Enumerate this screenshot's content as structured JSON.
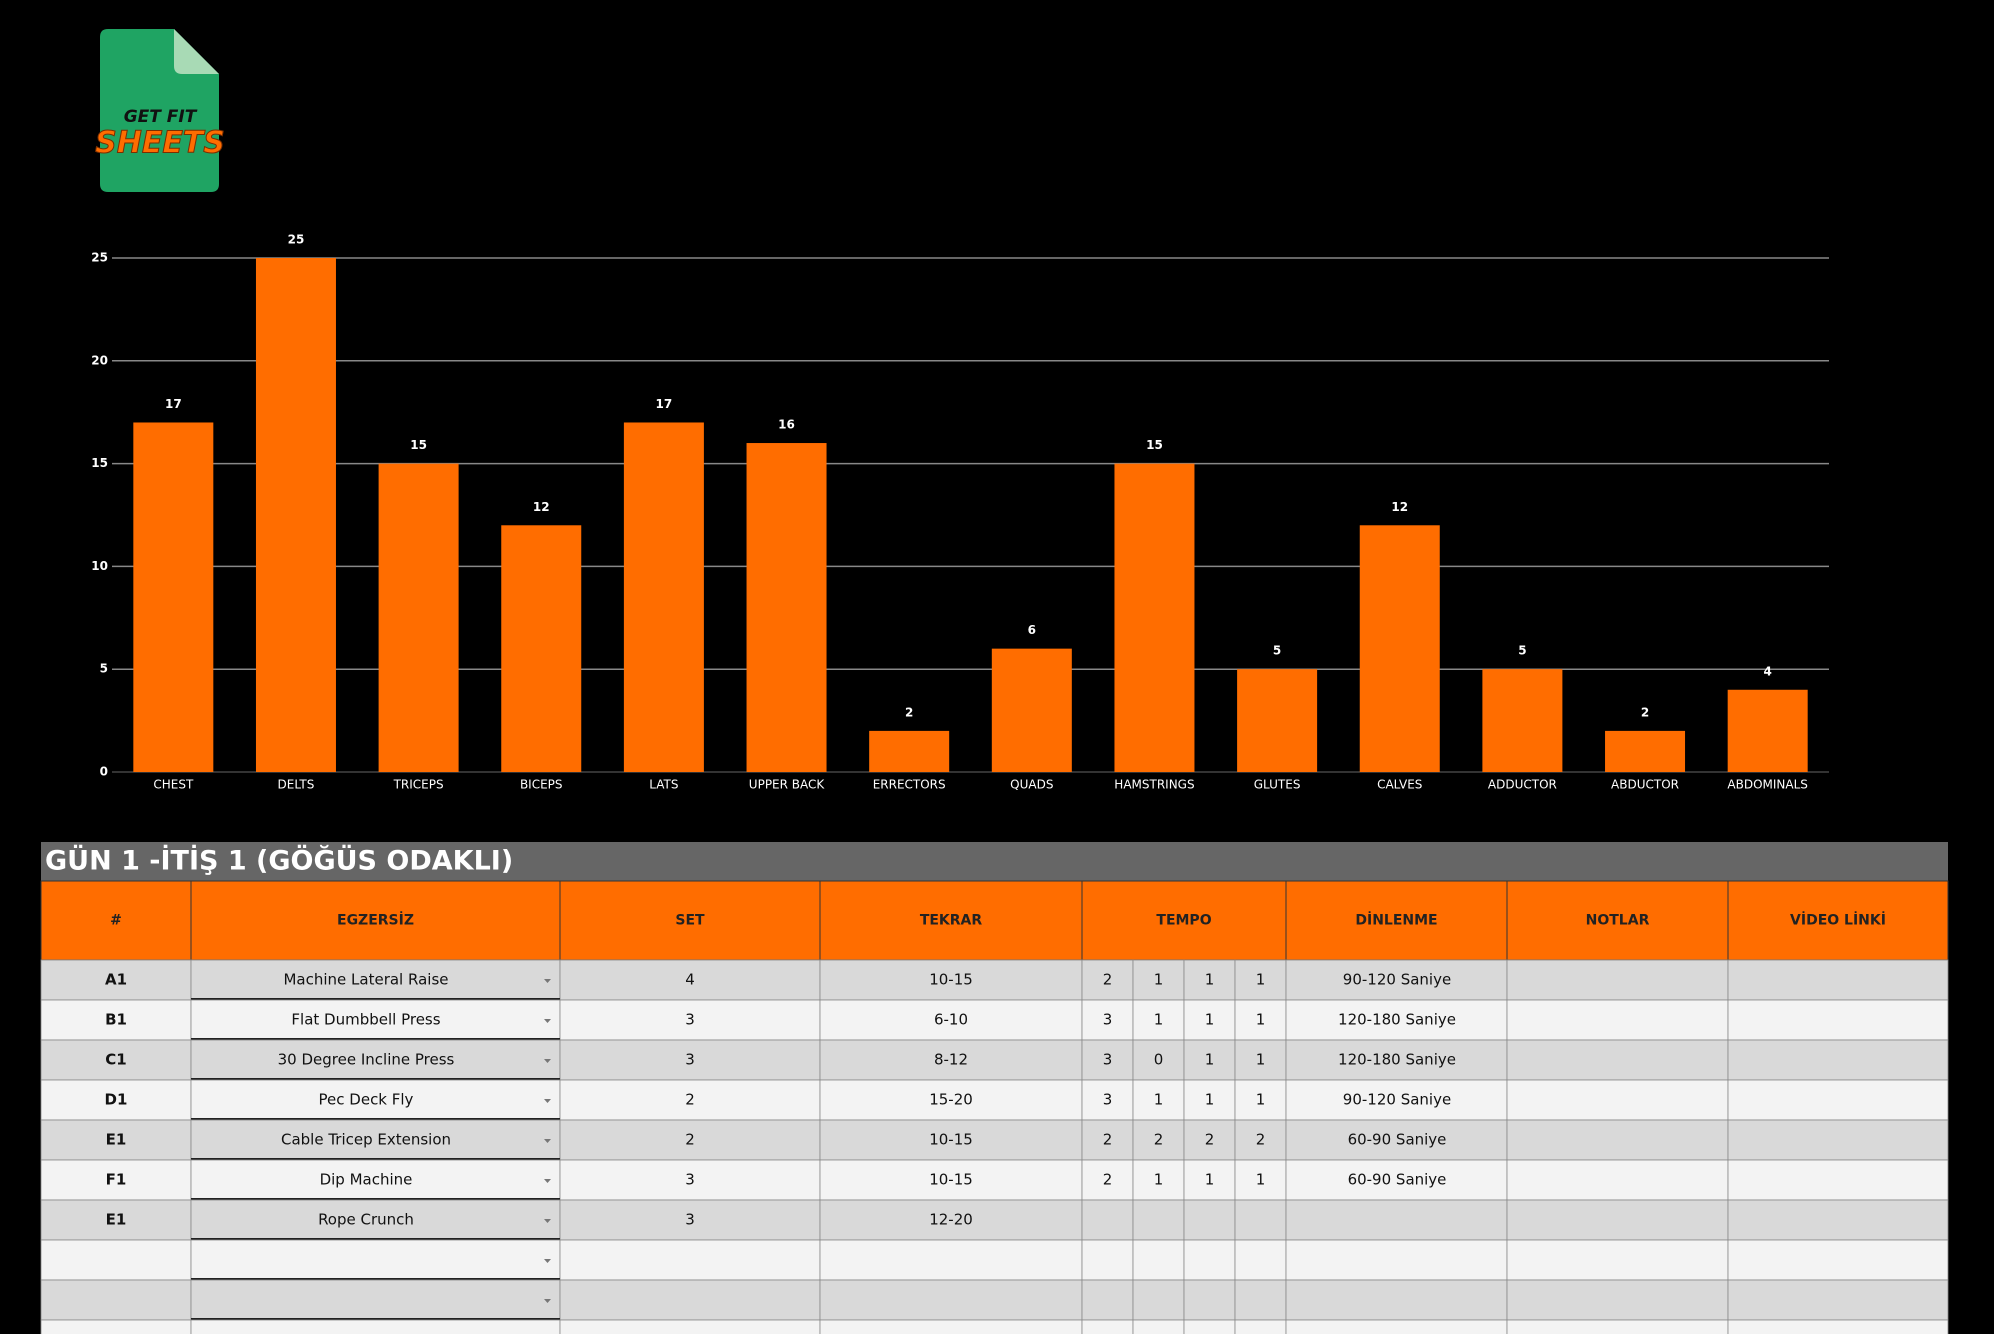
{
  "logo": {
    "line1": "GET FIT",
    "line2": "SHEETS"
  },
  "chart_data": {
    "type": "bar",
    "categories": [
      "CHEST",
      "DELTS",
      "TRICEPS",
      "BICEPS",
      "LATS",
      "UPPER BACK",
      "ERRECTORS",
      "QUADS",
      "HAMSTRINGS",
      "GLUTES",
      "CALVES",
      "ADDUCTOR",
      "ABDUCTOR",
      "ABDOMINALS"
    ],
    "values": [
      17,
      25,
      15,
      12,
      17,
      16,
      2,
      6,
      15,
      5,
      12,
      5,
      2,
      4
    ],
    "color": "#ff6d00",
    "ylim": [
      0,
      25
    ],
    "yticks": [
      0,
      5,
      10,
      15,
      20,
      25
    ],
    "grid": true
  },
  "table": {
    "title": "GÜN 1 -İTİŞ 1 (GÖĞÜS ODAKLI)",
    "headers": [
      "#",
      "EGZERSİZ",
      "SET",
      "TEKRAR",
      "TEMPO",
      "DİNLENME",
      "NOTLAR",
      "VİDEO LİNKİ"
    ],
    "rows": [
      {
        "id": "A1",
        "exercise": "Machine Lateral Raise",
        "set": 4,
        "reps": "10-15",
        "tempo": [
          2,
          1,
          1,
          1
        ],
        "rest": "90-120 Saniye"
      },
      {
        "id": "B1",
        "exercise": "Flat Dumbbell Press",
        "set": 3,
        "reps": "6-10",
        "tempo": [
          3,
          1,
          1,
          1
        ],
        "rest": "120-180 Saniye"
      },
      {
        "id": "C1",
        "exercise": "30 Degree Incline Press",
        "set": 3,
        "reps": "8-12",
        "tempo": [
          3,
          0,
          1,
          1
        ],
        "rest": "120-180 Saniye"
      },
      {
        "id": "D1",
        "exercise": "Pec Deck Fly",
        "set": 2,
        "reps": "15-20",
        "tempo": [
          3,
          1,
          1,
          1
        ],
        "rest": "90-120 Saniye"
      },
      {
        "id": "E1",
        "exercise": "Cable Tricep Extension",
        "set": 2,
        "reps": "10-15",
        "tempo": [
          2,
          2,
          2,
          2
        ],
        "rest": "60-90 Saniye"
      },
      {
        "id": "F1",
        "exercise": "Dip Machine",
        "set": 3,
        "reps": "10-15",
        "tempo": [
          2,
          1,
          1,
          1
        ],
        "rest": "60-90 Saniye"
      },
      {
        "id": "E1",
        "exercise": "Rope Crunch",
        "set": 3,
        "reps": "12-20"
      }
    ]
  }
}
